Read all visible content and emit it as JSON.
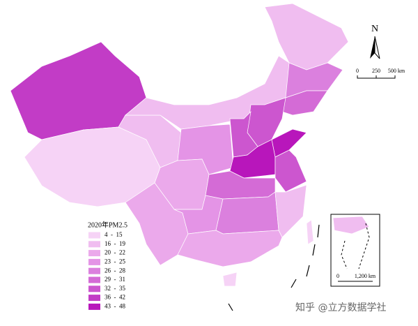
{
  "legend": {
    "title": "2020年PM2.5",
    "items": [
      {
        "label": "4  -  15",
        "color": "#f6d3f6"
      },
      {
        "label": "16  -  19",
        "color": "#f0bdf0"
      },
      {
        "label": "20  -  22",
        "color": "#eba9eb"
      },
      {
        "label": "23  -  25",
        "color": "#e494e6"
      },
      {
        "label": "26  -  28",
        "color": "#db80de"
      },
      {
        "label": "29  -  31",
        "color": "#d46bd6"
      },
      {
        "label": "32  -  35",
        "color": "#cc56cf"
      },
      {
        "label": "36  -  42",
        "color": "#c23cc6"
      },
      {
        "label": "43  -  48",
        "color": "#b816bb"
      }
    ]
  },
  "north_arrow": "N",
  "scale_bar": {
    "start": "0",
    "mid": "250",
    "end": "500 km"
  },
  "inset_scale": {
    "start": "0",
    "end": "1,200 km"
  },
  "watermark": "知乎 @立方数据学社"
}
